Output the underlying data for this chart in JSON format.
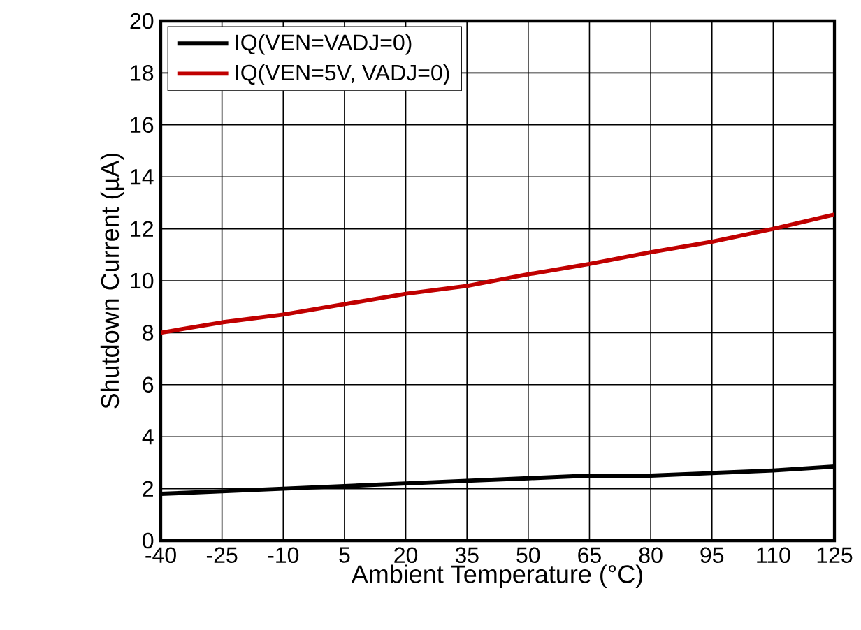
{
  "chart_data": {
    "type": "line",
    "xlabel": "Ambient Temperature (°C)",
    "ylabel": "Shutdown Current (µA)",
    "x": [
      -40,
      -25,
      -10,
      5,
      20,
      35,
      50,
      65,
      80,
      95,
      110,
      125
    ],
    "series": [
      {
        "name": "IQ(VEN=VADJ=0)",
        "color": "#000000",
        "values": [
          1.8,
          1.9,
          2.0,
          2.1,
          2.2,
          2.3,
          2.4,
          2.5,
          2.5,
          2.6,
          2.7,
          2.85
        ]
      },
      {
        "name": "IQ(VEN=5V, VADJ=0)",
        "color": "#c00000",
        "values": [
          8.0,
          8.4,
          8.7,
          9.1,
          9.5,
          9.8,
          10.25,
          10.65,
          11.1,
          11.5,
          12.0,
          12.55
        ]
      }
    ],
    "xlim": [
      -40,
      125
    ],
    "xticks": [
      -40,
      -25,
      -10,
      5,
      20,
      35,
      50,
      65,
      80,
      95,
      110,
      125
    ],
    "ylim": [
      0,
      20
    ],
    "yticks": [
      0,
      2,
      4,
      6,
      8,
      10,
      12,
      14,
      16,
      18,
      20
    ],
    "grid": true,
    "legend": "top left",
    "marker": "none",
    "line_style": "solid"
  }
}
